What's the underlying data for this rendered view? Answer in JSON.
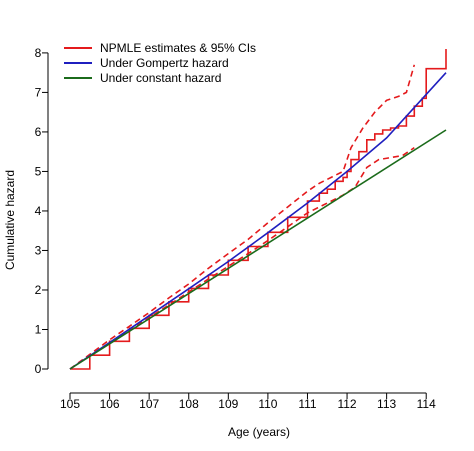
{
  "chart_data": {
    "type": "line",
    "title": "",
    "xlabel": "Age (years)",
    "ylabel": "Cumulative hazard",
    "xlim": [
      105,
      114.5
    ],
    "ylim": [
      0,
      8.2
    ],
    "xticks": [
      105,
      106,
      107,
      108,
      109,
      110,
      111,
      112,
      113,
      114
    ],
    "yticks": [
      0,
      1,
      2,
      3,
      4,
      5,
      6,
      7,
      8
    ],
    "grid": false,
    "legend_position": "top-left",
    "legend": [
      {
        "label": "NPMLE estimates & 95% CIs",
        "color": "#e41a1c"
      },
      {
        "label": "Under Gompertz hazard",
        "color": "#1f1fbf"
      },
      {
        "label": "Under constant hazard",
        "color": "#1b6b1b"
      }
    ],
    "series": [
      {
        "name": "NPMLE estimates & 95% CIs",
        "color": "#e41a1c",
        "style": "step",
        "x": [
          105.0,
          105.5,
          106.0,
          106.5,
          107.0,
          107.5,
          108.0,
          108.5,
          109.0,
          109.5,
          110.0,
          110.5,
          111.0,
          111.3,
          111.5,
          111.7,
          111.9,
          112.0,
          112.1,
          112.3,
          112.5,
          112.7,
          112.9,
          113.1,
          113.3,
          113.5,
          113.7,
          113.9,
          114.0,
          114.5
        ],
        "y": [
          0.0,
          0.35,
          0.7,
          1.03,
          1.36,
          1.7,
          2.04,
          2.38,
          2.75,
          3.1,
          3.46,
          3.84,
          4.25,
          4.45,
          4.55,
          4.75,
          4.85,
          5.0,
          5.3,
          5.5,
          5.8,
          5.95,
          6.05,
          6.1,
          6.15,
          6.4,
          6.65,
          6.85,
          7.6,
          8.1
        ]
      },
      {
        "name": "Lower 95% CI",
        "color": "#e41a1c",
        "style": "dashed",
        "x": [
          105.0,
          105.5,
          106.0,
          106.5,
          107.0,
          107.5,
          108.0,
          108.5,
          109.0,
          109.5,
          110.0,
          110.5,
          111.0,
          111.3,
          111.6,
          111.9,
          112.2,
          112.5,
          112.8,
          113.1,
          113.4,
          113.7
        ],
        "y": [
          0.0,
          0.33,
          0.66,
          0.98,
          1.3,
          1.62,
          1.95,
          2.28,
          2.6,
          2.92,
          3.25,
          3.6,
          3.95,
          4.1,
          4.25,
          4.4,
          4.6,
          5.1,
          5.3,
          5.35,
          5.4,
          5.6
        ]
      },
      {
        "name": "Upper 95% CI",
        "color": "#e41a1c",
        "style": "dashed",
        "x": [
          105.0,
          105.5,
          106.0,
          106.5,
          107.0,
          107.5,
          108.0,
          108.5,
          109.0,
          109.5,
          110.0,
          110.5,
          111.0,
          111.3,
          111.6,
          111.9,
          112.1,
          112.4,
          112.7,
          113.0,
          113.3,
          113.5,
          113.7
        ],
        "y": [
          0.0,
          0.37,
          0.74,
          1.08,
          1.43,
          1.8,
          2.15,
          2.55,
          2.92,
          3.28,
          3.7,
          4.1,
          4.5,
          4.7,
          4.85,
          5.0,
          5.6,
          6.1,
          6.5,
          6.8,
          6.9,
          7.0,
          7.7
        ]
      },
      {
        "name": "Under Gompertz hazard",
        "color": "#1f1fbf",
        "style": "solid",
        "x": [
          105.0,
          106.0,
          107.0,
          108.0,
          109.0,
          110.0,
          111.0,
          112.0,
          113.0,
          114.0,
          114.5
        ],
        "y": [
          0.0,
          0.67,
          1.35,
          2.03,
          2.72,
          3.45,
          4.2,
          5.0,
          5.85,
          6.95,
          7.5
        ]
      },
      {
        "name": "Under constant hazard",
        "color": "#1b6b1b",
        "style": "solid",
        "x": [
          105.0,
          114.5
        ],
        "y": [
          0.0,
          6.05
        ]
      }
    ]
  }
}
